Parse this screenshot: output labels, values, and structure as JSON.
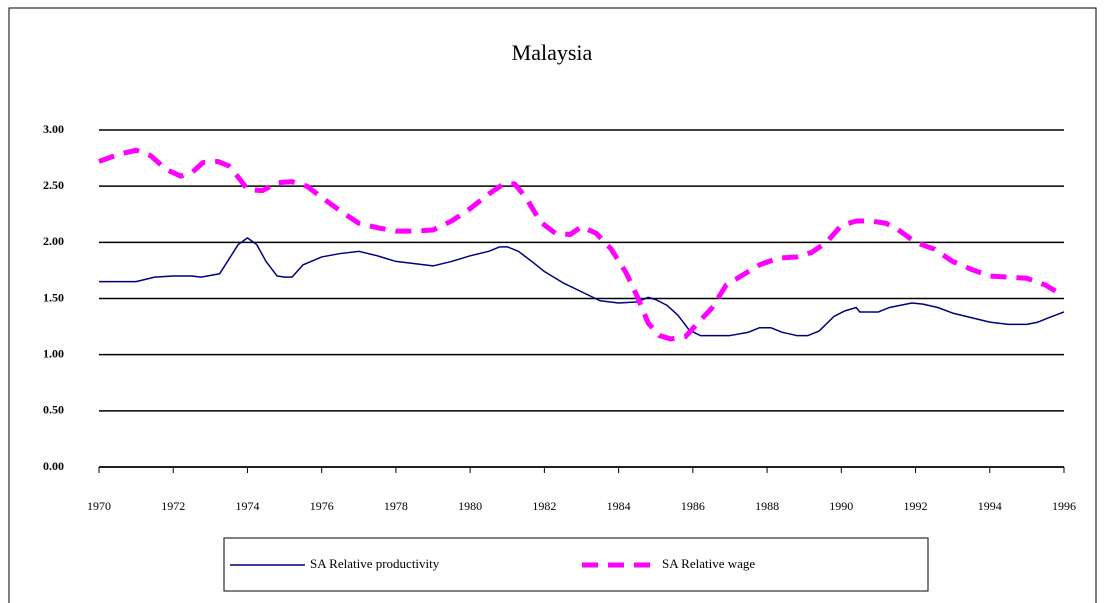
{
  "chart_data": {
    "type": "line",
    "title": "Malaysia",
    "xlim": [
      1970,
      1996
    ],
    "xticks": [
      1970,
      1972,
      1974,
      1976,
      1978,
      1980,
      1982,
      1984,
      1986,
      1988,
      1990,
      1992,
      1994,
      1996
    ],
    "ylim": [
      0,
      3
    ],
    "yticks": [
      {
        "value": 0,
        "label": "0.00"
      },
      {
        "value": 0.5,
        "label": "0.50"
      },
      {
        "value": 1,
        "label": "1.00"
      },
      {
        "value": 1.5,
        "label": "1.50"
      },
      {
        "value": 2,
        "label": "2.00"
      },
      {
        "value": 2.5,
        "label": "2.50"
      },
      {
        "value": 3,
        "label": "3.00"
      }
    ],
    "grid": true,
    "legend": "bottom",
    "series": [
      {
        "name": "SA Relative productivity",
        "color": "#000080",
        "dash": false,
        "x": [
          1970,
          1970.5,
          1971,
          1971.5,
          1972,
          1972.5,
          1972.75,
          1973.25,
          1973.75,
          1974,
          1974.25,
          1974.5,
          1974.8,
          1975,
          1975.2,
          1975.5,
          1976,
          1976.5,
          1977,
          1977.5,
          1978,
          1978.5,
          1979,
          1979.5,
          1980,
          1980.5,
          1980.8,
          1981,
          1981.3,
          1981.7,
          1982,
          1982.5,
          1983,
          1983.5,
          1984,
          1984.5,
          1984.8,
          1985,
          1985.3,
          1985.6,
          1985.9,
          1986.2,
          1986.5,
          1987,
          1987.5,
          1987.8,
          1988.1,
          1988.4,
          1988.8,
          1989.1,
          1989.4,
          1989.8,
          1990.1,
          1990.4,
          1990.5,
          1991,
          1991.3,
          1991.6,
          1991.9,
          1992.2,
          1992.6,
          1993,
          1993.5,
          1994,
          1994.5,
          1995,
          1995.3,
          1995.6,
          1996
        ],
        "values": [
          1.65,
          1.65,
          1.65,
          1.69,
          1.7,
          1.7,
          1.69,
          1.72,
          1.98,
          2.04,
          1.98,
          1.83,
          1.7,
          1.69,
          1.69,
          1.8,
          1.87,
          1.9,
          1.92,
          1.88,
          1.83,
          1.81,
          1.79,
          1.83,
          1.88,
          1.92,
          1.96,
          1.96,
          1.92,
          1.82,
          1.74,
          1.64,
          1.56,
          1.48,
          1.46,
          1.47,
          1.51,
          1.49,
          1.44,
          1.35,
          1.22,
          1.17,
          1.17,
          1.17,
          1.2,
          1.24,
          1.24,
          1.2,
          1.17,
          1.17,
          1.21,
          1.34,
          1.39,
          1.42,
          1.38,
          1.38,
          1.42,
          1.44,
          1.46,
          1.45,
          1.42,
          1.37,
          1.33,
          1.29,
          1.27,
          1.27,
          1.29,
          1.33,
          1.38
        ]
      },
      {
        "name": "SA Relative wage",
        "color": "#ff00ff",
        "dash": true,
        "x": [
          1970,
          1970.5,
          1971,
          1971.4,
          1971.8,
          1972.2,
          1972.5,
          1972.8,
          1973.2,
          1973.5,
          1973.8,
          1974,
          1974.4,
          1974.8,
          1975.2,
          1975.6,
          1976,
          1976.5,
          1977,
          1977.5,
          1978,
          1978.5,
          1979,
          1979.5,
          1980,
          1980.5,
          1980.9,
          1981.2,
          1981.5,
          1981.9,
          1982.3,
          1982.7,
          1983,
          1983.4,
          1983.8,
          1984.2,
          1984.5,
          1984.8,
          1985.1,
          1985.4,
          1985.8,
          1986.1,
          1986.5,
          1986.9,
          1987.4,
          1987.8,
          1988.3,
          1988.8,
          1989.2,
          1989.6,
          1990,
          1990.4,
          1990.8,
          1991.2,
          1991.5,
          1992,
          1992.5,
          1993,
          1993.5,
          1994,
          1994.5,
          1995,
          1995.5,
          1996
        ],
        "values": [
          2.72,
          2.78,
          2.82,
          2.77,
          2.65,
          2.59,
          2.62,
          2.71,
          2.72,
          2.68,
          2.56,
          2.47,
          2.46,
          2.53,
          2.54,
          2.5,
          2.4,
          2.28,
          2.17,
          2.13,
          2.1,
          2.1,
          2.11,
          2.19,
          2.3,
          2.43,
          2.52,
          2.52,
          2.4,
          2.18,
          2.08,
          2.07,
          2.14,
          2.08,
          1.94,
          1.73,
          1.52,
          1.28,
          1.17,
          1.14,
          1.16,
          1.27,
          1.41,
          1.62,
          1.72,
          1.8,
          1.86,
          1.87,
          1.91,
          2.0,
          2.15,
          2.19,
          2.19,
          2.17,
          2.12,
          2.0,
          1.94,
          1.83,
          1.76,
          1.7,
          1.69,
          1.68,
          1.62,
          1.52
        ]
      }
    ]
  }
}
